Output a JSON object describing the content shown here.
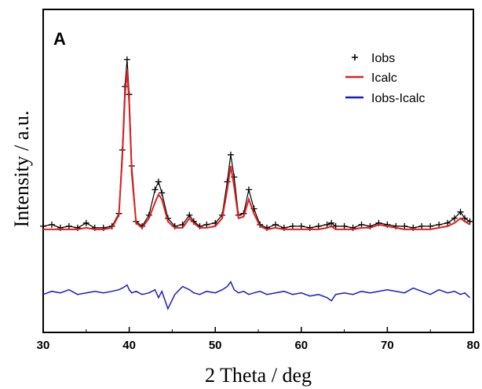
{
  "chart_data": {
    "type": "line",
    "panel_label": "A",
    "xlabel": "2 Theta / deg",
    "ylabel": "Intensity / a.u.",
    "xlim": [
      30,
      80
    ],
    "x_ticks": [
      "30",
      "40",
      "50",
      "60",
      "70",
      "80"
    ],
    "y_ticks_labeled": false,
    "grid": false,
    "legend_position": "top-right",
    "series": [
      {
        "name": "Iobs",
        "style": "marker-plus",
        "color": "#000000",
        "x": [
          30.0,
          31.0,
          32.0,
          33.0,
          34.0,
          35.0,
          36.0,
          37.0,
          38.0,
          38.8,
          39.2,
          39.5,
          39.75,
          40.0,
          40.3,
          40.8,
          41.5,
          42.3,
          43.0,
          43.4,
          43.8,
          44.5,
          45.3,
          46.2,
          47.0,
          47.5,
          48.2,
          49.0,
          50.0,
          50.8,
          51.4,
          51.8,
          52.2,
          52.7,
          53.3,
          53.9,
          54.5,
          55.2,
          56.0,
          57.0,
          58.0,
          59.0,
          60.0,
          61.0,
          62.0,
          63.0,
          63.5,
          64.0,
          65.0,
          66.0,
          67.0,
          68.0,
          69.0,
          70.0,
          71.0,
          72.0,
          73.0,
          74.0,
          75.0,
          76.0,
          77.0,
          77.8,
          78.5,
          79.0,
          79.6
        ],
        "y": [
          7,
          8,
          6,
          7,
          6,
          9,
          6,
          6,
          7,
          15,
          55,
          95,
          112,
          90,
          45,
          10,
          7,
          14,
          30,
          35,
          28,
          12,
          7,
          8,
          14,
          10,
          7,
          8,
          9,
          14,
          35,
          52,
          38,
          14,
          15,
          30,
          18,
          8,
          6,
          8,
          6,
          7,
          7,
          6,
          7,
          8,
          9,
          7,
          7,
          6,
          8,
          7,
          9,
          8,
          7,
          7,
          6,
          7,
          7,
          8,
          9,
          12,
          16,
          12,
          10
        ]
      },
      {
        "name": "Icalc",
        "style": "line",
        "color": "#e02020",
        "x": [
          30.0,
          31.0,
          32.0,
          33.0,
          34.0,
          35.0,
          36.0,
          37.0,
          38.0,
          38.8,
          39.2,
          39.5,
          39.75,
          40.0,
          40.3,
          40.8,
          41.5,
          42.3,
          43.0,
          43.4,
          43.8,
          44.5,
          45.3,
          46.2,
          47.0,
          47.5,
          48.2,
          49.0,
          50.0,
          50.8,
          51.4,
          51.8,
          52.2,
          52.7,
          53.3,
          53.9,
          54.5,
          55.2,
          56.0,
          57.0,
          58.0,
          59.0,
          60.0,
          61.0,
          62.0,
          63.0,
          63.5,
          64.0,
          65.0,
          66.0,
          67.0,
          68.0,
          69.0,
          70.0,
          71.0,
          72.0,
          73.0,
          74.0,
          75.0,
          76.0,
          77.0,
          77.8,
          78.5,
          79.0,
          79.6
        ],
        "y": [
          5,
          5,
          5,
          5,
          5,
          6,
          5,
          5,
          6,
          14,
          50,
          88,
          106,
          84,
          40,
          9,
          6,
          12,
          22,
          27,
          24,
          10,
          6,
          6,
          12,
          9,
          6,
          6,
          7,
          12,
          30,
          45,
          32,
          12,
          13,
          24,
          15,
          7,
          5,
          6,
          5,
          5,
          5,
          5,
          5,
          6,
          7,
          5,
          5,
          5,
          6,
          6,
          8,
          7,
          6,
          5,
          5,
          5,
          5,
          6,
          7,
          9,
          12,
          10,
          8
        ]
      },
      {
        "name": "Iobs-Icalc",
        "style": "line",
        "color": "#1a1ad0",
        "x": [
          30.0,
          31.0,
          32.0,
          33.0,
          34.0,
          35.0,
          36.0,
          37.0,
          38.0,
          38.8,
          39.2,
          39.5,
          39.75,
          40.0,
          40.3,
          40.8,
          41.5,
          42.3,
          43.0,
          43.4,
          43.8,
          44.5,
          45.3,
          46.2,
          47.0,
          47.5,
          48.2,
          49.0,
          50.0,
          50.8,
          51.4,
          51.8,
          52.2,
          52.7,
          53.3,
          53.9,
          54.5,
          55.2,
          56.0,
          57.0,
          58.0,
          59.0,
          60.0,
          61.0,
          62.0,
          63.0,
          63.5,
          64.0,
          65.0,
          66.0,
          67.0,
          68.0,
          69.0,
          70.0,
          71.0,
          72.0,
          73.0,
          74.0,
          75.0,
          76.0,
          77.0,
          77.8,
          78.5,
          79.0,
          79.6
        ],
        "y": [
          -36,
          -34,
          -35,
          -33,
          -36,
          -35,
          -34,
          -35,
          -34,
          -33,
          -32,
          -31,
          -30,
          -33,
          -35,
          -34,
          -36,
          -35,
          -33,
          -38,
          -34,
          -45,
          -36,
          -31,
          -33,
          -35,
          -36,
          -34,
          -35,
          -33,
          -31,
          -28,
          -33,
          -35,
          -34,
          -36,
          -35,
          -34,
          -36,
          -35,
          -34,
          -36,
          -35,
          -37,
          -36,
          -38,
          -40,
          -36,
          -35,
          -36,
          -34,
          -35,
          -34,
          -33,
          -34,
          -35,
          -32,
          -34,
          -36,
          -33,
          -35,
          -34,
          -36,
          -35,
          -38
        ]
      }
    ]
  }
}
